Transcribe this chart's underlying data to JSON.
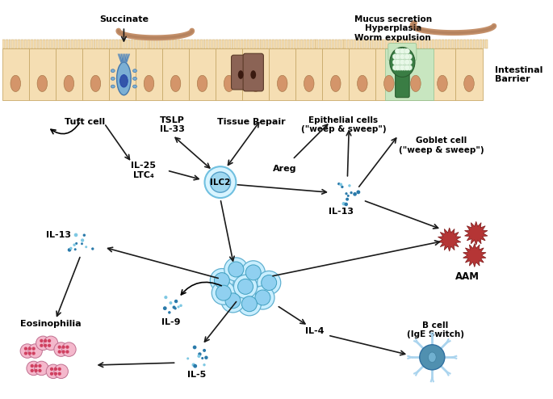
{
  "bg_color": "#ffffff",
  "intestinal_barrier_label": "Intestinal\nBarrier",
  "succinate_label": "Succinate",
  "mucus_label": "Mucus secretion\nHyperplasia\nWorm expulsion",
  "tuft_cell_label": "Tuft cell",
  "tissue_repair_label": "Tissue Repair",
  "epithelial_label": "Epithelial cells\n(\"weep & sweep\")",
  "goblet_label": "Goblet cell\n(\"weep & sweep\")",
  "tslp_il33_label": "TSLP\nIL-33",
  "il25_ltc4_label": "IL-25\nLTC₄",
  "ilc2_label": "ILC2",
  "areg_label": "Areg",
  "il13_mid_label": "IL-13",
  "aam_label": "AAM",
  "il13_left_label": "IL-13",
  "eosinophilia_label": "Eosinophilia",
  "il9_label": "IL-9",
  "il5_label": "IL-5",
  "il4_label": "IL-4",
  "bcell_label": "B cell\n(IgE Switch)",
  "cell_bg": "#f5deb3",
  "cell_border": "#c8a96a",
  "cell_nucleus": "#d4956a",
  "tuft_blue": "#6699cc",
  "goblet_green": "#4a9e5c",
  "tissue_brown": "#8b6355",
  "ilc2_outer": "#c8eeff",
  "ilc2_inner": "#90d0f0",
  "aam_red": "#b53535",
  "eosin_pink": "#f0a0c0",
  "eosin_dark": "#d04060",
  "bcell_blue": "#5090b0",
  "bcell_arm": "#90c0e0",
  "dot_light": "#7ec8e3",
  "dot_dark": "#2a7aaa",
  "worm_color": "#c4906a",
  "arrow_color": "#1a1a1a",
  "mucus_green": "#c8e6c0"
}
